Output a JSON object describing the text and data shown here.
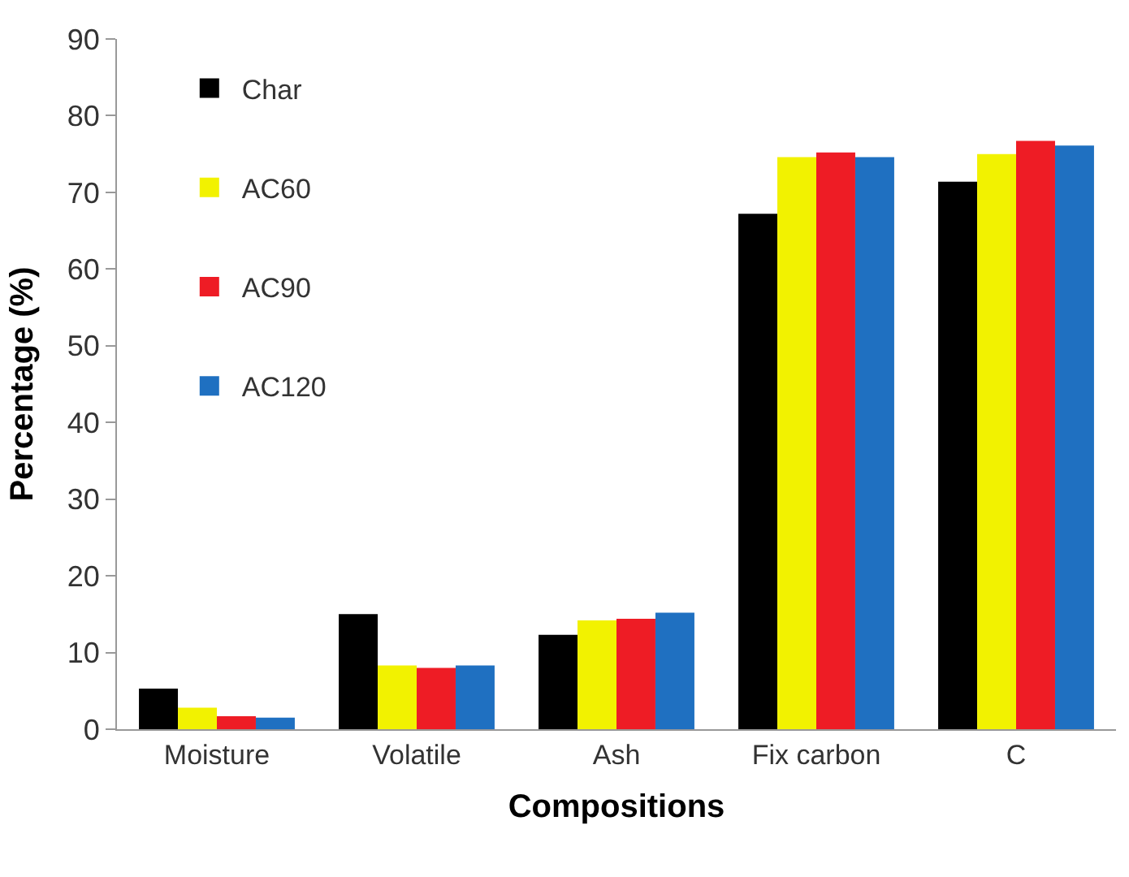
{
  "chart_data": {
    "type": "bar",
    "xlabel": "Compositions",
    "ylabel": "Percentage (%)",
    "categories": [
      "Moisture",
      "Volatile",
      "Ash",
      "Fix carbon",
      "C"
    ],
    "series": [
      {
        "name": "Char",
        "color": "#000000",
        "values": [
          5.3,
          15.0,
          12.3,
          67.2,
          71.4
        ]
      },
      {
        "name": "AC60",
        "color": "#f2f200",
        "values": [
          2.8,
          8.3,
          14.2,
          74.6,
          75.0
        ]
      },
      {
        "name": "AC90",
        "color": "#ee1c25",
        "values": [
          1.7,
          8.0,
          14.4,
          75.2,
          76.7
        ]
      },
      {
        "name": "AC120",
        "color": "#1f70c1",
        "values": [
          1.5,
          8.3,
          15.2,
          74.6,
          76.1
        ]
      }
    ],
    "ylim": [
      0,
      90
    ],
    "yticks": [
      0,
      10,
      20,
      30,
      40,
      50,
      60,
      70,
      80,
      90
    ],
    "legend": "top left"
  }
}
